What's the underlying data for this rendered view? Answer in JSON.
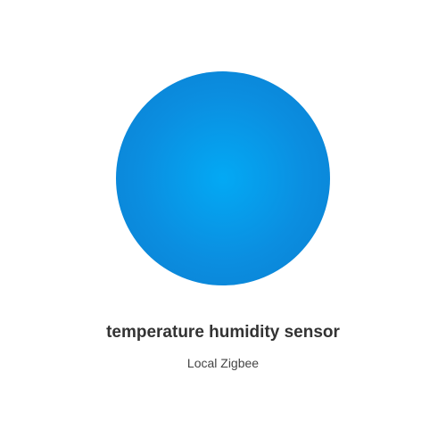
{
  "device": {
    "name": "temperature humidity sensor",
    "integration": "Local Zigbee",
    "orb_color": "#0b8ee0",
    "orb_highlight_color": "#03a9f4"
  }
}
